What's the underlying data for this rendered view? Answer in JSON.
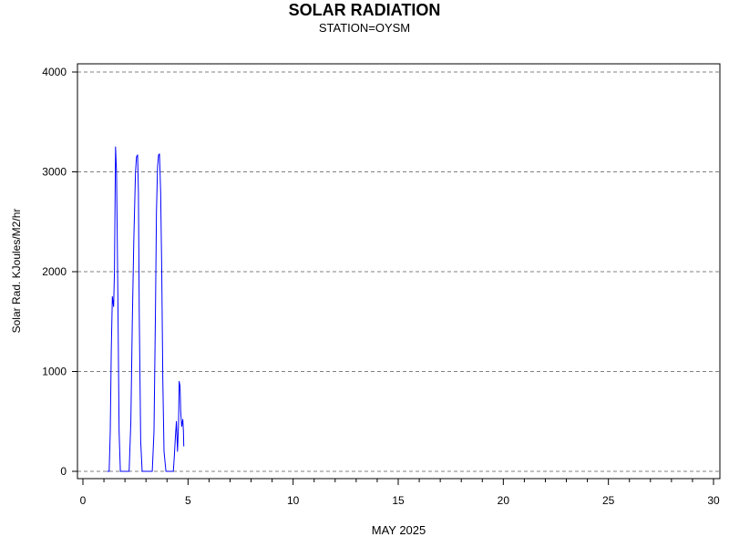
{
  "chart_data": {
    "type": "line",
    "title": "SOLAR RADIATION",
    "subtitle": "STATION=OYSM",
    "xlabel": "MAY 2025",
    "ylabel": "Solar Rad. KJoules/M2/hr",
    "xlim": [
      0,
      30
    ],
    "ylim": [
      0,
      4000
    ],
    "xticks": [
      0,
      5,
      10,
      15,
      20,
      25,
      30
    ],
    "yticks": [
      0,
      1000,
      2000,
      3000,
      4000
    ],
    "grid": "horizontal dashed",
    "series": [
      {
        "color": "#0000ff",
        "x": [
          1.15,
          1.25,
          1.3,
          1.35,
          1.4,
          1.43,
          1.46,
          1.5,
          1.55,
          1.6,
          1.66,
          1.72,
          1.78,
          1.85,
          2.0,
          2.2,
          2.28,
          2.35,
          2.42,
          2.5,
          2.55,
          2.6,
          2.64,
          2.68,
          2.75,
          2.82,
          2.9,
          3.0,
          3.3,
          3.38,
          3.45,
          3.5,
          3.55,
          3.6,
          3.64,
          3.7,
          3.75,
          3.8,
          3.86,
          3.95,
          4.2,
          4.3,
          4.35,
          4.4,
          4.45,
          4.5,
          4.55,
          4.58,
          4.62,
          4.65,
          4.7,
          4.75,
          4.78,
          4.8
        ],
        "y": [
          0,
          0,
          400,
          1200,
          1750,
          1700,
          1650,
          2000,
          3250,
          3000,
          1800,
          400,
          0,
          0,
          0,
          0,
          500,
          1500,
          2300,
          3000,
          3150,
          3170,
          2800,
          1600,
          300,
          0,
          0,
          0,
          0,
          400,
          1600,
          2600,
          3050,
          3170,
          3180,
          2800,
          2000,
          900,
          200,
          0,
          0,
          0,
          150,
          350,
          500,
          200,
          500,
          900,
          850,
          600,
          450,
          520,
          400,
          250
        ]
      }
    ]
  }
}
